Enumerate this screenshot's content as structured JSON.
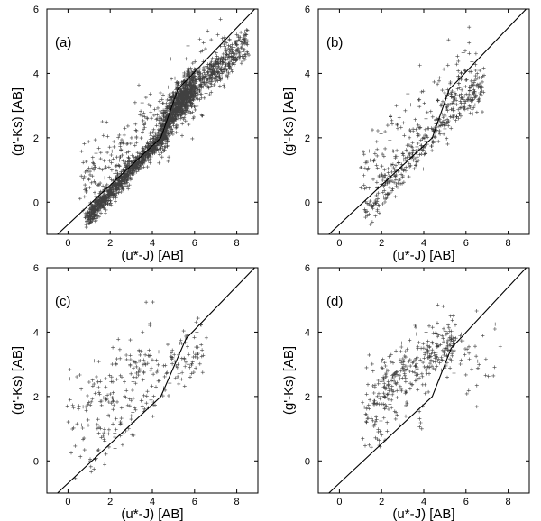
{
  "figure": {
    "background": "#ffffff",
    "ink": "#000000"
  },
  "chart_data": [
    {
      "type": "scatter",
      "panel_label": "(a)",
      "xlabel": "(u*-J) [AB]",
      "ylabel": "(g'-Ks) [AB]",
      "xlim": [
        -1,
        9
      ],
      "ylim": [
        -1,
        6
      ],
      "xticks": [
        0,
        2,
        4,
        6,
        8
      ],
      "yticks": [
        0,
        2,
        4,
        6
      ],
      "grid": false,
      "marker": "+",
      "boundary_line": {
        "x": [
          -0.5,
          4.4,
          5.2,
          9
        ],
        "y": [
          -1,
          2.0,
          3.5,
          6.1
        ]
      },
      "clusters": [
        {
          "x_range": [
            0.9,
            4.4
          ],
          "y_at_x": [
            [
              0.9,
              -0.5
            ],
            [
              4.4,
              2.0
            ]
          ],
          "spread": 0.15,
          "count": 900
        },
        {
          "x_range": [
            4.4,
            6.0
          ],
          "y_at_x": [
            [
              4.4,
              2.0
            ],
            [
              5.0,
              2.9
            ],
            [
              6.0,
              3.6
            ]
          ],
          "spread": 0.3,
          "count": 900
        },
        {
          "x_range": [
            6.0,
            8.5
          ],
          "y_at_x": [
            [
              6.0,
              3.6
            ],
            [
              8.5,
              4.9
            ]
          ],
          "spread": 0.25,
          "count": 350
        },
        {
          "x_range": [
            0.5,
            7.5
          ],
          "y_at_x": [
            [
              0.5,
              0.6
            ],
            [
              4.0,
              2.4
            ],
            [
              7.5,
              4.6
            ]
          ],
          "spread": 0.55,
          "count": 320
        }
      ]
    },
    {
      "type": "scatter",
      "panel_label": "(b)",
      "xlabel": "(u*-J) [AB]",
      "ylabel": "(g'-Ks) [AB]",
      "xlim": [
        -1,
        9
      ],
      "ylim": [
        -1,
        6
      ],
      "xticks": [
        0,
        2,
        4,
        6,
        8
      ],
      "yticks": [
        0,
        2,
        4,
        6
      ],
      "grid": false,
      "marker": "+",
      "boundary_line": {
        "x": [
          -0.5,
          4.4,
          5.2,
          9
        ],
        "y": [
          -1,
          2.0,
          3.5,
          6.1
        ]
      },
      "clusters": [
        {
          "x_range": [
            1.1,
            4.4
          ],
          "y_at_x": [
            [
              1.1,
              -0.3
            ],
            [
              4.4,
              2.1
            ]
          ],
          "spread": 0.3,
          "count": 200
        },
        {
          "x_range": [
            4.4,
            6.8
          ],
          "y_at_x": [
            [
              4.4,
              2.1
            ],
            [
              5.2,
              2.9
            ],
            [
              6.8,
              3.7
            ]
          ],
          "spread": 0.35,
          "count": 200
        },
        {
          "x_range": [
            1.0,
            6.5
          ],
          "y_at_x": [
            [
              1.0,
              1.0
            ],
            [
              4.0,
              2.9
            ],
            [
              6.5,
              4.2
            ]
          ],
          "spread": 0.6,
          "count": 130
        }
      ]
    },
    {
      "type": "scatter",
      "panel_label": "(c)",
      "xlabel": "(u*-J) [AB]",
      "ylabel": "(g'-Ks) [AB]",
      "xlim": [
        -1,
        9
      ],
      "ylim": [
        -1,
        6
      ],
      "xticks": [
        0,
        2,
        4,
        6,
        8
      ],
      "yticks": [
        0,
        2,
        4,
        6
      ],
      "grid": false,
      "marker": "+",
      "boundary_line": {
        "x": [
          -0.5,
          4.4,
          5.6,
          9
        ],
        "y": [
          -1,
          2.0,
          3.8,
          6.1
        ]
      },
      "clusters": [
        {
          "x_range": [
            0.0,
            4.0
          ],
          "y_at_x": [
            [
              0.0,
              1.0
            ],
            [
              2.0,
              2.2
            ],
            [
              4.0,
              3.0
            ]
          ],
          "spread": 0.7,
          "count": 170
        },
        {
          "x_range": [
            1.0,
            4.0
          ],
          "y_at_x": [
            [
              1.0,
              -0.2
            ],
            [
              4.0,
              1.8
            ]
          ],
          "spread": 0.35,
          "count": 40
        },
        {
          "x_range": [
            4.0,
            6.5
          ],
          "y_at_x": [
            [
              4.0,
              2.4
            ],
            [
              6.5,
              3.6
            ]
          ],
          "spread": 0.5,
          "count": 90
        }
      ]
    },
    {
      "type": "scatter",
      "panel_label": "(d)",
      "xlabel": "(u*-J) [AB]",
      "ylabel": "(g'-Ks) [AB]",
      "xlim": [
        -1,
        9
      ],
      "ylim": [
        -1,
        6
      ],
      "xticks": [
        0,
        2,
        4,
        6,
        8
      ],
      "yticks": [
        0,
        2,
        4,
        6
      ],
      "grid": false,
      "marker": "+",
      "boundary_line": {
        "x": [
          -0.5,
          4.4,
          5.3,
          9
        ],
        "y": [
          -1,
          2.0,
          3.5,
          6.1
        ]
      },
      "clusters": [
        {
          "x_range": [
            1.2,
            5.5
          ],
          "y_at_x": [
            [
              1.2,
              1.8
            ],
            [
              3.0,
              2.8
            ],
            [
              5.5,
              3.8
            ]
          ],
          "spread": 0.5,
          "count": 330
        },
        {
          "x_range": [
            1.0,
            4.0
          ],
          "y_at_x": [
            [
              1.0,
              0.6
            ],
            [
              4.0,
              1.9
            ]
          ],
          "spread": 0.35,
          "count": 35
        },
        {
          "x_range": [
            5.0,
            7.5
          ],
          "y_at_x": [
            [
              5.0,
              3.2
            ],
            [
              7.5,
              2.9
            ]
          ],
          "spread": 0.6,
          "count": 40
        }
      ]
    }
  ]
}
